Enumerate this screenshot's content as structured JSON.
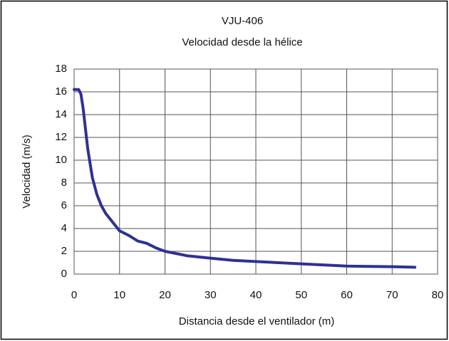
{
  "chart_data": {
    "type": "line",
    "title": "VJU-406",
    "subtitle": "Velocidad desde la hélice",
    "x_label": "Distancia desde el ventilador (m)",
    "y_label": "Velocidad (m/s)",
    "x": [
      0,
      1,
      1.5,
      2,
      3,
      4,
      5,
      6,
      7,
      8,
      9,
      10,
      12,
      14,
      16,
      18,
      20,
      25,
      30,
      35,
      40,
      50,
      60,
      70,
      75
    ],
    "series": [
      {
        "name": "Velocidad",
        "color": "#2e3192",
        "values": [
          16.2,
          16.2,
          15.8,
          14.5,
          11,
          8.5,
          7,
          6,
          5.3,
          4.8,
          4.3,
          3.8,
          3.4,
          2.9,
          2.7,
          2.3,
          2.0,
          1.6,
          1.4,
          1.2,
          1.1,
          0.9,
          0.7,
          0.65,
          0.6
        ]
      }
    ],
    "xlim": [
      0,
      80
    ],
    "xticks": [
      0,
      10,
      20,
      30,
      40,
      50,
      60,
      70,
      80
    ],
    "ylim": [
      0,
      18
    ],
    "yticks": [
      0,
      2,
      4,
      6,
      8,
      10,
      12,
      14,
      16,
      18
    ],
    "grid": true
  }
}
